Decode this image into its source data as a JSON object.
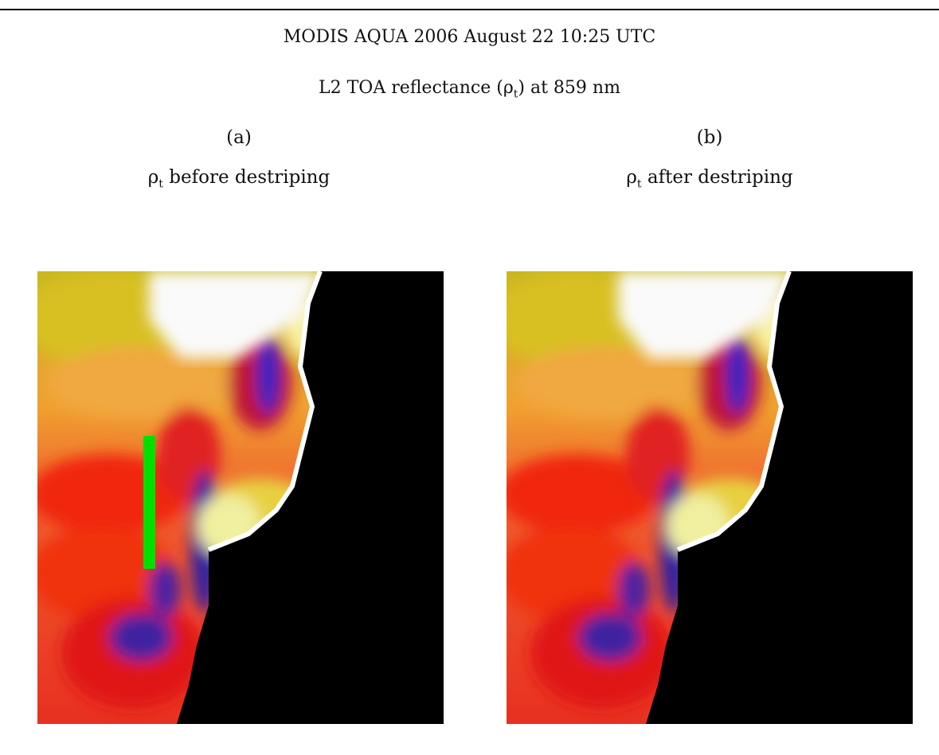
{
  "header": {
    "title": "MODIS AQUA 2006 August 22 10:25 UTC",
    "subtitle": {
      "before": "L2 TOA  reflectance (",
      "symbol": "ρ",
      "subscript": "t",
      "after": ") at 859 nm"
    }
  },
  "panels": [
    {
      "label": "(a)",
      "caption": {
        "symbol": "ρ",
        "subscript": "t",
        "text": " before destriping"
      }
    },
    {
      "label": "(b)",
      "caption": {
        "symbol": "ρ",
        "subscript": "t",
        "text": " after destriping"
      }
    }
  ]
}
